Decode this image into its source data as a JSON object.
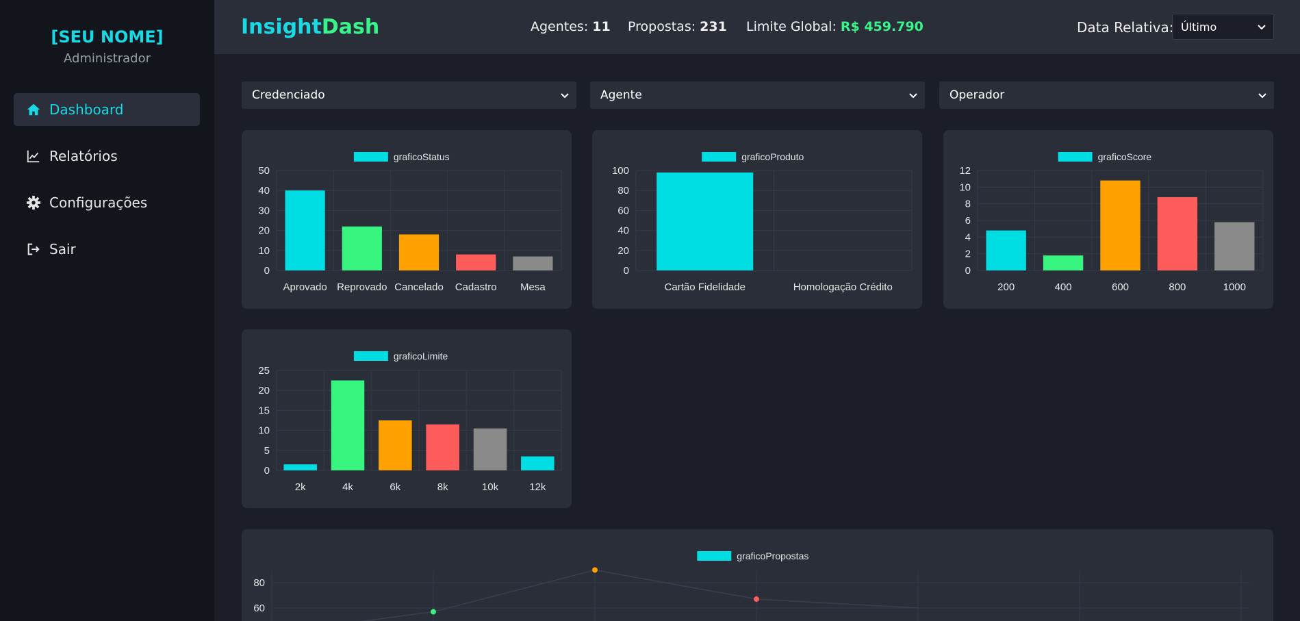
{
  "sidebar": {
    "profile_name": "[SEU NOME]",
    "profile_role": "Administrador",
    "items": [
      {
        "label": "Dashboard",
        "icon": "home-icon",
        "active": true
      },
      {
        "label": "Relatórios",
        "icon": "chart-line-icon",
        "active": false
      },
      {
        "label": "Configurações",
        "icon": "gear-icon",
        "active": false
      },
      {
        "label": "Sair",
        "icon": "sign-out-icon",
        "active": false
      }
    ]
  },
  "header": {
    "brand_part1": "Insight",
    "brand_part2": "Dash",
    "agentes_label": "Agentes:",
    "agentes_value": "11",
    "propostas_label": "Propostas:",
    "propostas_value": "231",
    "limite_label": "Limite Global:",
    "limite_value": "R$ 459.790",
    "date_label": "Data Relativa:",
    "date_value": "Último"
  },
  "filters": {
    "credenciado": "Credenciado",
    "agente": "Agente",
    "operador": "Operador"
  },
  "colors": {
    "cyan": "#00dde3",
    "green": "#38f57f",
    "orange": "#ffa200",
    "red": "#ff5c5c",
    "gray": "#8a8a8a"
  },
  "chart_data": [
    {
      "id": "status",
      "type": "bar",
      "title": "graficoStatus",
      "categories": [
        "Aprovado",
        "Reprovado",
        "Cancelado",
        "Cadastro",
        "Mesa"
      ],
      "values": [
        40,
        22,
        18,
        8,
        7
      ],
      "colors": [
        "#00dde3",
        "#38f57f",
        "#ffa200",
        "#ff5c5c",
        "#8a8a8a"
      ],
      "yticks": [
        0,
        10,
        20,
        30,
        40,
        50
      ],
      "ylim": [
        0,
        50
      ]
    },
    {
      "id": "produto",
      "type": "bar",
      "title": "graficoProduto",
      "categories": [
        "Cartão Fidelidade",
        "Homologação Crédito"
      ],
      "values": [
        98,
        0
      ],
      "colors": [
        "#00dde3",
        "#38f57f"
      ],
      "yticks": [
        0,
        20,
        40,
        60,
        80,
        100
      ],
      "ylim": [
        0,
        100
      ]
    },
    {
      "id": "score",
      "type": "bar",
      "title": "graficoScore",
      "categories": [
        "200",
        "400",
        "600",
        "800",
        "1000"
      ],
      "values": [
        4.8,
        1.8,
        10.8,
        8.8,
        5.8
      ],
      "colors": [
        "#00dde3",
        "#38f57f",
        "#ffa200",
        "#ff5c5c",
        "#8a8a8a"
      ],
      "yticks": [
        0,
        2,
        4,
        6,
        8,
        10,
        12
      ],
      "ylim": [
        0,
        12
      ]
    },
    {
      "id": "limite",
      "type": "bar",
      "title": "graficoLimite",
      "categories": [
        "2k",
        "4k",
        "6k",
        "8k",
        "10k",
        "12k"
      ],
      "values": [
        1.5,
        22.5,
        12.5,
        11.5,
        10.5,
        3.5
      ],
      "colors": [
        "#00dde3",
        "#38f57f",
        "#ffa200",
        "#ff5c5c",
        "#8a8a8a",
        "#00dde3"
      ],
      "yticks": [
        0,
        5,
        10,
        15,
        20,
        25
      ],
      "ylim": [
        0,
        25
      ]
    },
    {
      "id": "propostas",
      "type": "line",
      "title": "graficoPropostas",
      "yticks": [
        60,
        80
      ],
      "ylim": [
        50,
        90
      ],
      "points": [
        {
          "x": 2,
          "y": 57,
          "color": "#38f57f"
        },
        {
          "x": 3,
          "y": 90,
          "color": "#ffa200"
        },
        {
          "x": 4,
          "y": 67,
          "color": "#ff5c5c"
        }
      ],
      "x_count": 8
    }
  ]
}
